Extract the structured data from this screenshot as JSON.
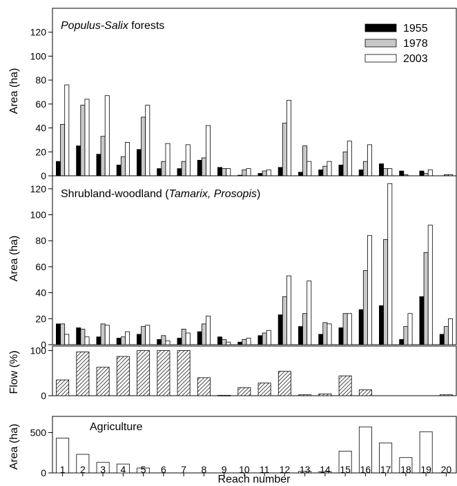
{
  "chart_data": [
    {
      "type": "bar",
      "title": "Populus-Salix forests",
      "title_italic_part": "Populus-Salix",
      "title_rest": " forests",
      "ylabel": "Area (ha)",
      "ylim": [
        0,
        140
      ],
      "yticks": [
        0,
        20,
        40,
        60,
        80,
        100,
        120
      ],
      "legend_placement": "top-right",
      "categories": [
        "1",
        "2",
        "3",
        "4",
        "5",
        "6",
        "7",
        "8",
        "9",
        "10",
        "11",
        "12",
        "13",
        "14",
        "15",
        "16",
        "17",
        "18",
        "19",
        "20"
      ],
      "series": [
        {
          "name": "1955",
          "values": [
            12,
            25,
            18,
            9,
            22,
            6,
            6,
            13,
            7,
            0.5,
            2,
            7,
            3,
            5,
            9,
            5,
            10,
            4,
            4,
            0
          ]
        },
        {
          "name": "1978",
          "values": [
            43,
            59,
            33,
            16,
            49,
            12,
            12,
            15,
            6,
            5,
            4,
            44,
            25,
            8,
            20,
            12,
            6,
            1,
            2,
            1
          ]
        },
        {
          "name": "2003",
          "values": [
            76,
            64,
            67,
            28,
            59,
            27,
            26,
            42,
            6,
            6,
            5,
            63,
            12,
            12,
            29,
            26,
            6,
            0,
            5,
            1
          ]
        }
      ]
    },
    {
      "type": "bar",
      "title_prefix": "Shrubland-woodland (",
      "title_italic_part": "Tamarix, Prosopis",
      "title_suffix": ")",
      "ylabel": "Area (ha)",
      "ylim": [
        0,
        130
      ],
      "yticks": [
        0,
        20,
        40,
        60,
        80,
        100,
        120
      ],
      "categories": [
        "1",
        "2",
        "3",
        "4",
        "5",
        "6",
        "7",
        "8",
        "9",
        "10",
        "11",
        "12",
        "13",
        "14",
        "15",
        "16",
        "17",
        "18",
        "19",
        "20"
      ],
      "series": [
        {
          "name": "1955",
          "values": [
            16,
            13,
            6,
            5,
            8,
            4,
            5,
            10,
            6,
            2,
            7,
            23,
            14,
            8,
            13,
            27,
            30,
            4,
            37,
            8
          ]
        },
        {
          "name": "1978",
          "values": [
            16,
            12,
            16,
            6,
            14,
            7,
            12,
            16,
            4,
            4,
            9,
            37,
            24,
            17,
            24,
            57,
            81,
            14,
            71,
            14
          ]
        },
        {
          "name": "2003",
          "values": [
            8,
            6,
            15,
            10,
            15,
            3,
            9,
            22,
            2,
            5,
            11,
            53,
            49,
            16,
            24,
            84,
            124,
            24,
            92,
            20
          ]
        }
      ]
    },
    {
      "type": "bar",
      "ylabel": "Flow (%)",
      "ylim": [
        0,
        110
      ],
      "yticks": [
        0,
        100
      ],
      "categories": [
        "1",
        "2",
        "3",
        "4",
        "5",
        "6",
        "7",
        "8",
        "9",
        "10",
        "11",
        "12",
        "13",
        "14",
        "15",
        "16",
        "17",
        "18",
        "19",
        "20"
      ],
      "values": [
        35,
        97,
        63,
        87,
        100,
        100,
        100,
        40,
        1,
        18,
        28,
        54,
        2,
        4,
        44,
        13,
        0,
        0,
        0,
        2
      ]
    },
    {
      "type": "bar",
      "title": "Agriculture",
      "ylabel": "Area (ha)",
      "ylim": [
        0,
        700
      ],
      "yticks": [
        0,
        500
      ],
      "xlabel": "Reach number",
      "categories": [
        "1",
        "2",
        "3",
        "4",
        "5",
        "6",
        "7",
        "8",
        "9",
        "10",
        "11",
        "12",
        "13",
        "14",
        "15",
        "16",
        "17",
        "18",
        "19",
        "20"
      ],
      "values": [
        430,
        230,
        130,
        110,
        60,
        0,
        0,
        0,
        0,
        0,
        0,
        0,
        20,
        15,
        270,
        570,
        370,
        190,
        510,
        0
      ]
    }
  ]
}
